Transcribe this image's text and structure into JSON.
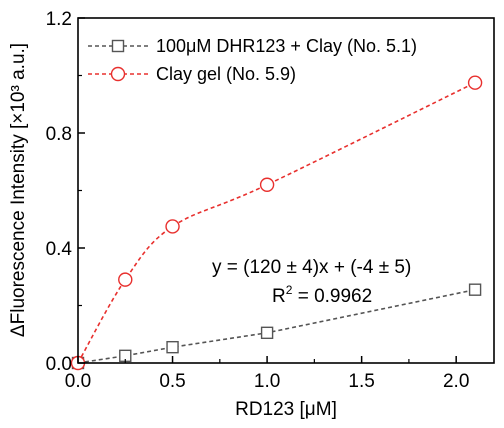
{
  "chart_data": {
    "type": "line",
    "xlabel": "RD123 [μM]",
    "ylabel": "ΔFluorescence Intensity [×10³ a.u.]",
    "xlim": [
      0,
      2.2
    ],
    "ylim": [
      0,
      1.2
    ],
    "x_ticks": [
      "0.0",
      "0.5",
      "1.0",
      "1.5",
      "2.0"
    ],
    "y_ticks": [
      "0.0",
      "0.4",
      "0.8",
      "1.2"
    ],
    "grid": false,
    "legend_position": "top-left",
    "series": [
      {
        "name": "100μM DHR123 + Clay (No. 5.1)",
        "marker": "square",
        "line_style": "dashed",
        "color": "#555555",
        "x": [
          0,
          0.25,
          0.5,
          1.0,
          2.1
        ],
        "y": [
          0,
          0.025,
          0.055,
          0.105,
          0.255
        ]
      },
      {
        "name": "Clay gel (No. 5.9)",
        "marker": "circle",
        "line_style": "dashed",
        "color": "#e8302e",
        "x": [
          0,
          0.25,
          0.5,
          1.0,
          2.1
        ],
        "y": [
          0,
          0.29,
          0.475,
          0.62,
          0.975
        ]
      }
    ],
    "annotations": {
      "fit_equation": "y = (120 ± 4)x + (-4 ± 5)",
      "r_squared_prefix": "R",
      "r_squared_sup": "2",
      "r_squared_value": " = 0.9962"
    }
  }
}
